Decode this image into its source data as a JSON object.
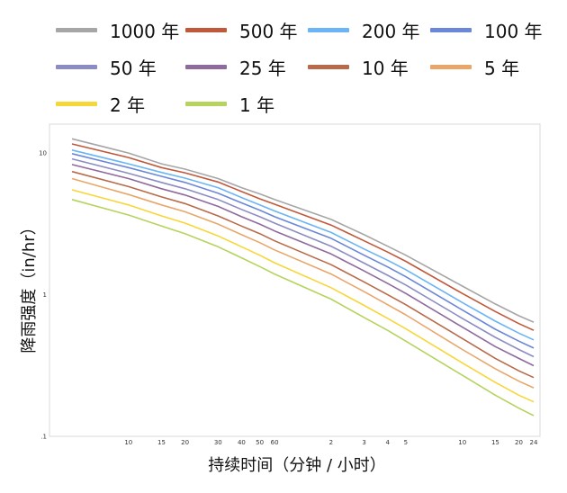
{
  "chart_data": {
    "type": "line",
    "xlabel": "持续时间（分钟 / 小时）",
    "ylabel": "降雨强度（in/hr）",
    "xscale": "log",
    "yscale": "log",
    "ylim": [
      0.1,
      16
    ],
    "x_unit": "minutes",
    "x": [
      5,
      10,
      15,
      20,
      30,
      40,
      50,
      60,
      120,
      180,
      240,
      300,
      600,
      900,
      1200,
      1440
    ],
    "x_ticks": [
      {
        "value": 10,
        "label": "10"
      },
      {
        "value": 15,
        "label": "15"
      },
      {
        "value": 20,
        "label": "20"
      },
      {
        "value": 30,
        "label": "30"
      },
      {
        "value": 40,
        "label": "40"
      },
      {
        "value": 50,
        "label": "50"
      },
      {
        "value": 60,
        "label": "60"
      },
      {
        "value": 120,
        "label": "2"
      },
      {
        "value": 180,
        "label": "3"
      },
      {
        "value": 240,
        "label": "4"
      },
      {
        "value": 300,
        "label": "5"
      },
      {
        "value": 600,
        "label": "10"
      },
      {
        "value": 900,
        "label": "15"
      },
      {
        "value": 1200,
        "label": "20"
      },
      {
        "value": 1440,
        "label": "24"
      }
    ],
    "y_ticks": [
      {
        "value": 10,
        "label": "10"
      },
      {
        "value": 1,
        "label": "1"
      },
      {
        "value": 0.1,
        "label": ".1"
      }
    ],
    "grid": false,
    "legend_position": "top",
    "series": [
      {
        "name": "1000 年",
        "color": "#a6a6a6",
        "values": [
          12.6,
          10.0,
          8.4,
          7.7,
          6.6,
          5.7,
          5.15,
          4.7,
          3.4,
          2.65,
          2.2,
          1.9,
          1.15,
          0.86,
          0.71,
          0.64
        ]
      },
      {
        "name": "500 年",
        "color": "#c0583a",
        "values": [
          11.6,
          9.3,
          7.9,
          7.25,
          6.25,
          5.35,
          4.75,
          4.35,
          3.1,
          2.4,
          2.0,
          1.72,
          1.02,
          0.76,
          0.625,
          0.56
        ]
      },
      {
        "name": "200 年",
        "color": "#6bb4f5",
        "values": [
          10.5,
          8.4,
          7.3,
          6.65,
          5.7,
          4.85,
          4.3,
          3.9,
          2.75,
          2.1,
          1.75,
          1.5,
          0.88,
          0.65,
          0.535,
          0.48
        ]
      },
      {
        "name": "100 年",
        "color": "#6a87d8",
        "values": [
          9.9,
          7.9,
          6.85,
          6.2,
          5.2,
          4.45,
          3.95,
          3.55,
          2.5,
          1.9,
          1.57,
          1.34,
          0.78,
          0.57,
          0.47,
          0.42
        ]
      },
      {
        "name": "50 年",
        "color": "#8c8cc4",
        "values": [
          9.1,
          7.2,
          6.2,
          5.6,
          4.7,
          4.0,
          3.55,
          3.2,
          2.2,
          1.67,
          1.37,
          1.17,
          0.68,
          0.5,
          0.41,
          0.365
        ]
      },
      {
        "name": "25 年",
        "color": "#8f6a9c",
        "values": [
          8.3,
          6.6,
          5.6,
          5.05,
          4.2,
          3.55,
          3.15,
          2.82,
          1.94,
          1.47,
          1.2,
          1.02,
          0.59,
          0.43,
          0.355,
          0.315
        ]
      },
      {
        "name": "10 年",
        "color": "#b86a4a",
        "values": [
          7.4,
          5.8,
          4.9,
          4.4,
          3.6,
          3.05,
          2.7,
          2.4,
          1.63,
          1.23,
          1.0,
          0.85,
          0.49,
          0.355,
          0.29,
          0.26
        ]
      },
      {
        "name": "5 年",
        "color": "#e8a66a",
        "values": [
          6.6,
          5.1,
          4.3,
          3.85,
          3.15,
          2.65,
          2.33,
          2.07,
          1.4,
          1.05,
          0.85,
          0.72,
          0.41,
          0.3,
          0.245,
          0.22
        ]
      },
      {
        "name": "2 年",
        "color": "#f7d63a",
        "values": [
          5.5,
          4.3,
          3.6,
          3.2,
          2.6,
          2.18,
          1.9,
          1.68,
          1.12,
          0.84,
          0.68,
          0.575,
          0.33,
          0.24,
          0.195,
          0.175
        ]
      },
      {
        "name": "1 年",
        "color": "#b5d35e",
        "values": [
          4.7,
          3.65,
          3.05,
          2.7,
          2.18,
          1.82,
          1.58,
          1.4,
          0.93,
          0.69,
          0.56,
          0.47,
          0.27,
          0.195,
          0.158,
          0.14
        ]
      }
    ]
  }
}
